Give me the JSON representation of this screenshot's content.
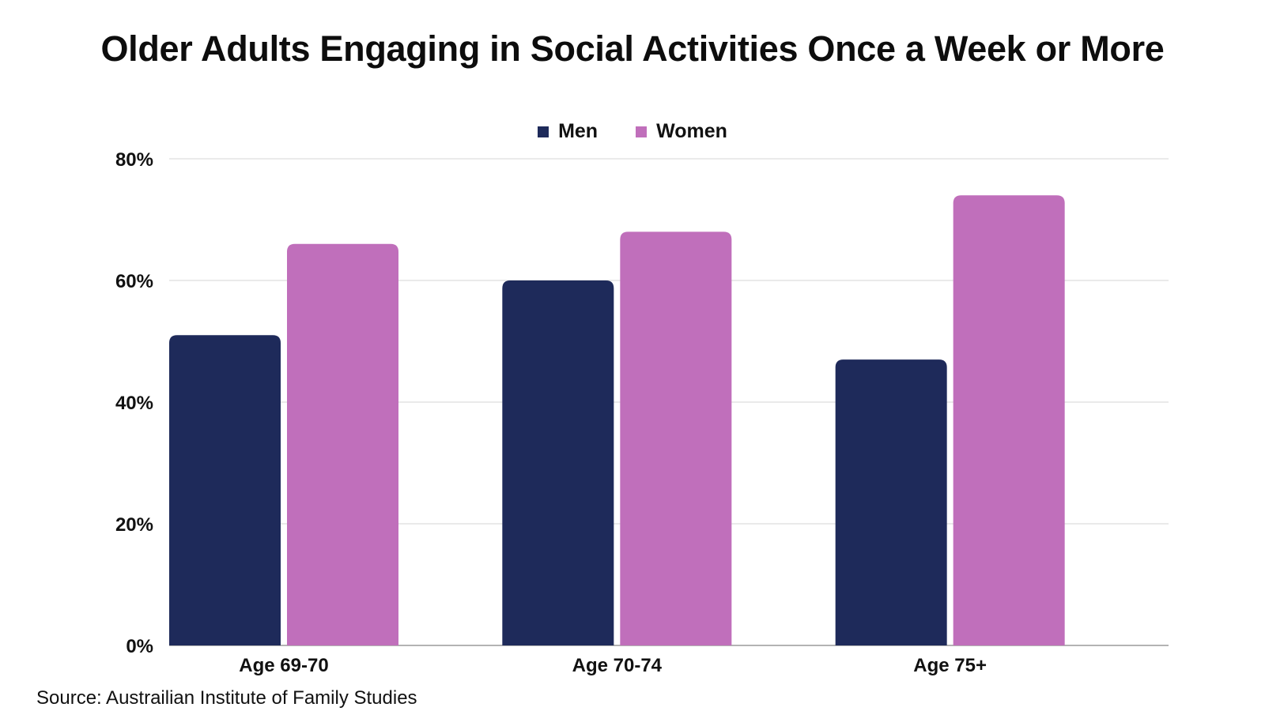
{
  "chart_data": {
    "type": "bar",
    "title": "Older Adults Engaging in Social Activities Once a Week or More",
    "categories": [
      "Age 69-70",
      "Age 70-74",
      "Age 75+"
    ],
    "series": [
      {
        "name": "Men",
        "values": [
          51,
          60,
          47
        ],
        "color": "#1e2a5a"
      },
      {
        "name": "Women",
        "values": [
          66,
          68,
          74
        ],
        "color": "#c06fbb"
      }
    ],
    "y_ticks": [
      "0%",
      "20%",
      "40%",
      "60%",
      "80%"
    ],
    "ylim": [
      0,
      80
    ],
    "grid": true,
    "legend_position": "top-center"
  },
  "source": "Source: Austrailian Institute of Family Studies"
}
